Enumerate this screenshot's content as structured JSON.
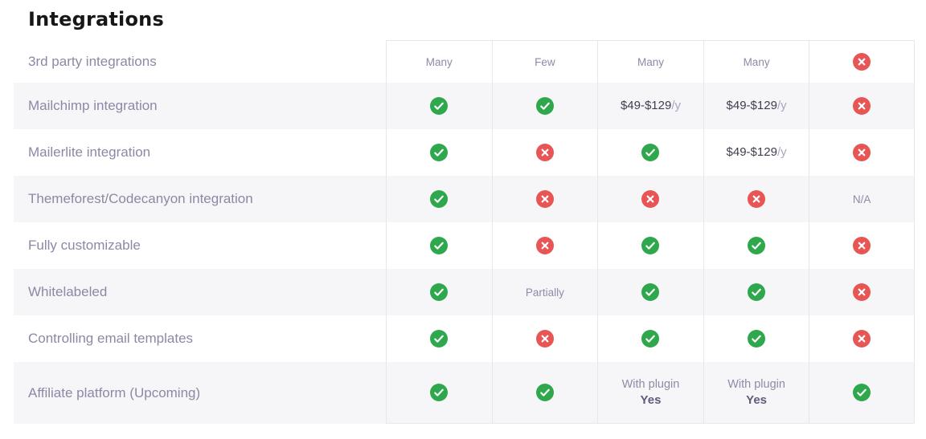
{
  "title": "Integrations",
  "colors": {
    "title": "#171717",
    "label": "#8b89a4",
    "muted": "#8d8ba6",
    "dark": "#3f3e4f",
    "suffix": "#a7a5c1",
    "yes": "#5f5c7b",
    "green": "#2fa84d",
    "red": "#e85555",
    "stripe": "#f6f6f9",
    "border": "#e7e7eb"
  },
  "icons": {
    "check": "green-circle-check",
    "cross": "red-circle-x"
  },
  "table": {
    "rows": [
      {
        "label": "3rd party integrations",
        "cells": [
          {
            "type": "text",
            "text": "Many"
          },
          {
            "type": "text",
            "text": "Few"
          },
          {
            "type": "text",
            "text": "Many"
          },
          {
            "type": "text",
            "text": "Many"
          },
          {
            "type": "cross"
          }
        ]
      },
      {
        "label": "Mailchimp integration",
        "cells": [
          {
            "type": "check"
          },
          {
            "type": "check"
          },
          {
            "type": "price",
            "main": "$49-$129",
            "suffix": "/y"
          },
          {
            "type": "price",
            "main": "$49-$129",
            "suffix": "/y"
          },
          {
            "type": "cross"
          }
        ]
      },
      {
        "label": "Mailerlite integration",
        "cells": [
          {
            "type": "check"
          },
          {
            "type": "cross"
          },
          {
            "type": "check"
          },
          {
            "type": "price",
            "main": "$49-$129",
            "suffix": "/y"
          },
          {
            "type": "cross"
          }
        ]
      },
      {
        "label": "Themeforest/Codecanyon integration",
        "cells": [
          {
            "type": "check"
          },
          {
            "type": "cross"
          },
          {
            "type": "cross"
          },
          {
            "type": "cross"
          },
          {
            "type": "text",
            "text": "N/A"
          }
        ]
      },
      {
        "label": "Fully customizable",
        "cells": [
          {
            "type": "check"
          },
          {
            "type": "cross"
          },
          {
            "type": "check"
          },
          {
            "type": "check"
          },
          {
            "type": "cross"
          }
        ]
      },
      {
        "label": "Whitelabeled",
        "cells": [
          {
            "type": "check"
          },
          {
            "type": "text",
            "text": "Partially"
          },
          {
            "type": "check"
          },
          {
            "type": "check"
          },
          {
            "type": "cross"
          }
        ]
      },
      {
        "label": "Controlling email templates",
        "cells": [
          {
            "type": "check"
          },
          {
            "type": "cross"
          },
          {
            "type": "check"
          },
          {
            "type": "check"
          },
          {
            "type": "cross"
          }
        ]
      },
      {
        "label": "Affiliate platform (Upcoming)",
        "cells": [
          {
            "type": "check"
          },
          {
            "type": "check"
          },
          {
            "type": "two_line",
            "line1": "With plugin",
            "line2": "Yes"
          },
          {
            "type": "two_line",
            "line1": "With plugin",
            "line2": "Yes"
          },
          {
            "type": "check"
          }
        ]
      }
    ]
  }
}
